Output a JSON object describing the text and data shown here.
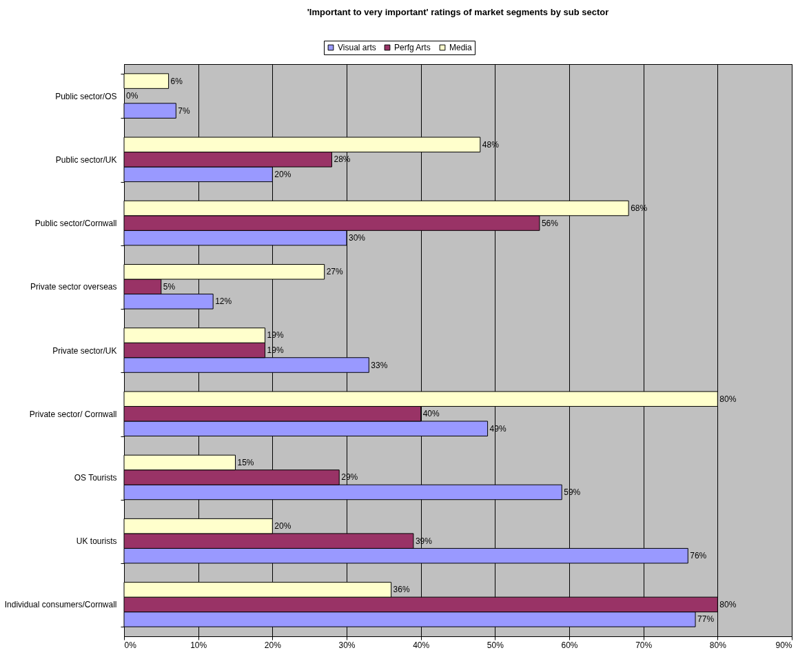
{
  "chart_data": {
    "type": "bar",
    "orientation": "horizontal",
    "title": "'Important to very important' ratings of market segments by sub sector",
    "categories": [
      "Public sector/OS",
      "Public sector/UK",
      "Public sector/Cornwall",
      "Private sector overseas",
      "Private sector/UK",
      "Private sector/ Cornwall",
      "OS Tourists",
      "UK tourists",
      "Individual consumers/Cornwall"
    ],
    "series": [
      {
        "name": "Visual arts",
        "color": "#9999ff",
        "values": [
          7,
          20,
          30,
          12,
          33,
          49,
          59,
          76,
          77
        ],
        "value_labels": [
          "7%",
          "20%",
          "30%",
          "12%",
          "33%",
          "49%",
          "59%",
          "76%",
          "77%"
        ]
      },
      {
        "name": "Perfg Arts",
        "color": "#993366",
        "values": [
          0,
          28,
          56,
          5,
          19,
          40,
          29,
          39,
          80
        ],
        "value_labels": [
          "0%",
          "28%",
          "56%",
          "5%",
          "19%",
          "40%",
          "29%",
          "39%",
          "80%"
        ]
      },
      {
        "name": "Media",
        "color": "#ffffcc",
        "values": [
          6,
          48,
          68,
          27,
          19,
          80,
          15,
          20,
          36
        ],
        "value_labels": [
          "6%",
          "48%",
          "68%",
          "27%",
          "19%",
          "80%",
          "15%",
          "20%",
          "36%"
        ]
      }
    ],
    "xlim": [
      0,
      90
    ],
    "xticks": [
      {
        "value": 0,
        "label": "0%"
      },
      {
        "value": 10,
        "label": "10%"
      },
      {
        "value": 20,
        "label": "20%"
      },
      {
        "value": 30,
        "label": "30%"
      },
      {
        "value": 40,
        "label": "40%"
      },
      {
        "value": 50,
        "label": "50%"
      },
      {
        "value": 60,
        "label": "60%"
      },
      {
        "value": 70,
        "label": "70%"
      },
      {
        "value": 80,
        "label": "80%"
      },
      {
        "value": 90,
        "label": "90%"
      }
    ],
    "grid": "x",
    "legend": "top"
  }
}
